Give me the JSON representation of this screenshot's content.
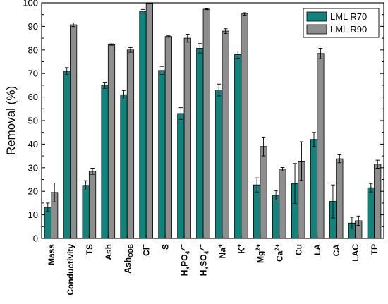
{
  "chart_data": {
    "type": "bar",
    "xlabel": "",
    "ylabel": "Removal (%)",
    "ylim": [
      0,
      100
    ],
    "yticks": [
      "0",
      "10",
      "20",
      "30",
      "40",
      "50",
      "60",
      "70",
      "80",
      "90",
      "100"
    ],
    "grid": false,
    "legend_position": "top-right",
    "categories": [
      {
        "main": "Mass",
        "sub": "",
        "sup": ""
      },
      {
        "main": "Conductivity",
        "sub": "",
        "sup": ""
      },
      {
        "main": "TS",
        "sub": "",
        "sup": ""
      },
      {
        "main": "Ash",
        "sub": "",
        "sup": ""
      },
      {
        "main": "Ash",
        "sub": "ODB",
        "sup": ""
      },
      {
        "main": "Cl",
        "sub": "",
        "sup": "−"
      },
      {
        "main": "S",
        "sub": "",
        "sup": ""
      },
      {
        "main": "H",
        "sub": "x",
        "main2": "PO",
        "sub2": "4",
        "sup": "y−"
      },
      {
        "main": "H",
        "sub": "x",
        "main2": "SO",
        "sub2": "4",
        "sup": "y−"
      },
      {
        "main": "Na",
        "sub": "",
        "sup": "+"
      },
      {
        "main": "K",
        "sub": "",
        "sup": "+"
      },
      {
        "main": "Mg",
        "sub": "",
        "sup": "2+"
      },
      {
        "main": "Ca",
        "sub": "",
        "sup": "2+"
      },
      {
        "main": "Cu",
        "sub": "",
        "sup": ""
      },
      {
        "main": "LA",
        "sub": "",
        "sup": ""
      },
      {
        "main": "CA",
        "sub": "",
        "sup": ""
      },
      {
        "main": "LAC",
        "sub": "",
        "sup": ""
      },
      {
        "main": "TP",
        "sub": "",
        "sup": ""
      }
    ],
    "series": [
      {
        "name": "LML R70",
        "color": "#0f847c",
        "values": [
          13.2,
          71.0,
          22.5,
          65.0,
          61.0,
          96.4,
          71.3,
          53.0,
          80.7,
          63.0,
          78.0,
          22.7,
          18.3,
          23.3,
          42.0,
          15.7,
          6.5,
          21.5
        ],
        "errors": [
          1.8,
          1.5,
          2.0,
          1.3,
          1.8,
          0.8,
          1.7,
          2.5,
          2.0,
          2.5,
          1.5,
          3.0,
          2.0,
          8.5,
          3.0,
          7.0,
          2.5,
          1.8
        ]
      },
      {
        "name": "LML R90",
        "color": "#8e8e8e",
        "values": [
          19.5,
          90.7,
          28.5,
          82.3,
          80.0,
          99.8,
          85.7,
          85.0,
          97.3,
          88.0,
          95.3,
          39.0,
          29.4,
          32.8,
          78.5,
          33.8,
          7.5,
          31.5
        ],
        "errors": [
          4.0,
          0.8,
          1.3,
          0.3,
          1.0,
          0.2,
          0.3,
          1.7,
          0.2,
          1.0,
          0.5,
          4.0,
          0.7,
          8.2,
          2.2,
          1.7,
          2.0,
          1.7
        ]
      }
    ]
  }
}
